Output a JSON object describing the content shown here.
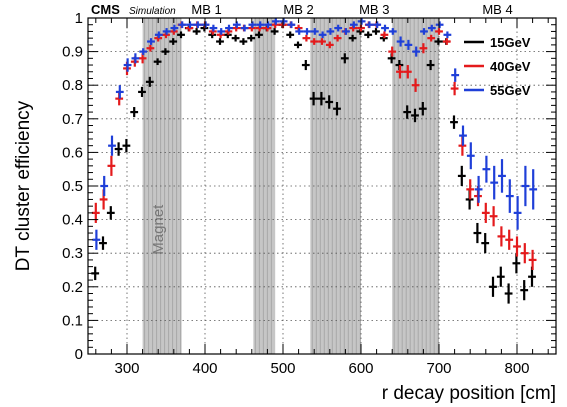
{
  "chart_data": {
    "type": "scatter",
    "xlabel": "r decay position [cm]",
    "ylabel": "DT cluster efficiency",
    "xlim": [
      250,
      850
    ],
    "ylim": [
      0,
      1.0
    ],
    "x_ticks": [
      300,
      400,
      500,
      600,
      700,
      800
    ],
    "y_ticks": [
      0,
      0.1,
      0.2,
      0.3,
      0.4,
      0.5,
      0.6,
      0.7,
      0.8,
      0.9,
      1
    ],
    "grid": true,
    "legend_position": "top-right",
    "experiment_label": "CMS",
    "experiment_sublabel": "Simulation",
    "shaded_regions": [
      {
        "name": "Magnet",
        "x0": 320,
        "x1": 370
      },
      {
        "name": "MB 1",
        "x0": 462,
        "x1": 490
      },
      {
        "name": "MB 2",
        "x0": 535,
        "x1": 600
      },
      {
        "name": "MB 3",
        "x0": 640,
        "x1": 700
      }
    ],
    "region_labels": [
      {
        "text": "MB 1",
        "x": 402
      },
      {
        "text": "MB 2",
        "x": 520
      },
      {
        "text": "MB 3",
        "x": 617
      },
      {
        "text": "MB 4",
        "x": 775
      }
    ],
    "series": [
      {
        "name": "15GeV",
        "color": "#000000",
        "points": [
          [
            260,
            0.24,
            0.02
          ],
          [
            270,
            0.33,
            0.02
          ],
          [
            280,
            0.42,
            0.02
          ],
          [
            290,
            0.61,
            0.02
          ],
          [
            300,
            0.62,
            0.02
          ],
          [
            310,
            0.72,
            0.015
          ],
          [
            320,
            0.78,
            0.015
          ],
          [
            330,
            0.81,
            0.015
          ],
          [
            340,
            0.87,
            0.01
          ],
          [
            350,
            0.9,
            0.01
          ],
          [
            360,
            0.93,
            0.01
          ],
          [
            370,
            0.95,
            0.01
          ],
          [
            380,
            0.97,
            0.01
          ],
          [
            390,
            0.96,
            0.01
          ],
          [
            400,
            0.97,
            0.01
          ],
          [
            410,
            0.95,
            0.01
          ],
          [
            420,
            0.93,
            0.01
          ],
          [
            430,
            0.95,
            0.01
          ],
          [
            440,
            0.94,
            0.01
          ],
          [
            450,
            0.93,
            0.01
          ],
          [
            460,
            0.94,
            0.01
          ],
          [
            470,
            0.95,
            0.01
          ],
          [
            480,
            0.97,
            0.01
          ],
          [
            490,
            0.96,
            0.01
          ],
          [
            500,
            0.98,
            0.01
          ],
          [
            510,
            0.95,
            0.01
          ],
          [
            520,
            0.92,
            0.01
          ],
          [
            530,
            0.86,
            0.015
          ],
          [
            540,
            0.76,
            0.02
          ],
          [
            550,
            0.76,
            0.02
          ],
          [
            560,
            0.75,
            0.02
          ],
          [
            570,
            0.73,
            0.02
          ],
          [
            580,
            0.88,
            0.015
          ],
          [
            590,
            0.94,
            0.01
          ],
          [
            600,
            0.96,
            0.01
          ],
          [
            610,
            0.95,
            0.01
          ],
          [
            620,
            0.96,
            0.01
          ],
          [
            630,
            0.94,
            0.01
          ],
          [
            640,
            0.88,
            0.015
          ],
          [
            650,
            0.86,
            0.015
          ],
          [
            660,
            0.72,
            0.02
          ],
          [
            670,
            0.71,
            0.02
          ],
          [
            680,
            0.73,
            0.02
          ],
          [
            690,
            0.86,
            0.015
          ],
          [
            700,
            0.93,
            0.01
          ],
          [
            710,
            0.93,
            0.01
          ],
          [
            720,
            0.69,
            0.02
          ],
          [
            730,
            0.53,
            0.03
          ],
          [
            740,
            0.46,
            0.03
          ],
          [
            750,
            0.36,
            0.03
          ],
          [
            760,
            0.33,
            0.03
          ],
          [
            770,
            0.2,
            0.03
          ],
          [
            780,
            0.23,
            0.03
          ],
          [
            790,
            0.18,
            0.03
          ],
          [
            800,
            0.27,
            0.03
          ],
          [
            810,
            0.19,
            0.03
          ],
          [
            820,
            0.23,
            0.03
          ]
        ]
      },
      {
        "name": "40GeV",
        "color": "#e41a1c",
        "points": [
          [
            260,
            0.42,
            0.03
          ],
          [
            270,
            0.46,
            0.03
          ],
          [
            280,
            0.56,
            0.03
          ],
          [
            290,
            0.76,
            0.02
          ],
          [
            300,
            0.85,
            0.02
          ],
          [
            310,
            0.87,
            0.015
          ],
          [
            320,
            0.88,
            0.015
          ],
          [
            330,
            0.91,
            0.01
          ],
          [
            340,
            0.94,
            0.01
          ],
          [
            350,
            0.95,
            0.01
          ],
          [
            360,
            0.96,
            0.01
          ],
          [
            370,
            0.98,
            0.01
          ],
          [
            380,
            0.97,
            0.01
          ],
          [
            390,
            0.98,
            0.01
          ],
          [
            400,
            0.98,
            0.01
          ],
          [
            410,
            0.96,
            0.01
          ],
          [
            420,
            0.95,
            0.01
          ],
          [
            430,
            0.96,
            0.01
          ],
          [
            440,
            0.97,
            0.01
          ],
          [
            450,
            0.97,
            0.01
          ],
          [
            460,
            0.97,
            0.01
          ],
          [
            470,
            0.97,
            0.01
          ],
          [
            480,
            0.97,
            0.01
          ],
          [
            490,
            0.98,
            0.01
          ],
          [
            500,
            0.98,
            0.01
          ],
          [
            510,
            0.98,
            0.01
          ],
          [
            520,
            0.97,
            0.01
          ],
          [
            530,
            0.94,
            0.01
          ],
          [
            540,
            0.93,
            0.01
          ],
          [
            550,
            0.93,
            0.01
          ],
          [
            560,
            0.92,
            0.01
          ],
          [
            570,
            0.94,
            0.01
          ],
          [
            580,
            0.96,
            0.01
          ],
          [
            590,
            0.97,
            0.01
          ],
          [
            600,
            0.97,
            0.01
          ],
          [
            610,
            0.98,
            0.01
          ],
          [
            620,
            0.98,
            0.01
          ],
          [
            630,
            0.95,
            0.01
          ],
          [
            640,
            0.9,
            0.015
          ],
          [
            650,
            0.84,
            0.02
          ],
          [
            660,
            0.84,
            0.02
          ],
          [
            670,
            0.8,
            0.02
          ],
          [
            680,
            0.91,
            0.015
          ],
          [
            690,
            0.94,
            0.01
          ],
          [
            700,
            0.96,
            0.01
          ],
          [
            710,
            0.93,
            0.01
          ],
          [
            720,
            0.79,
            0.02
          ],
          [
            730,
            0.62,
            0.03
          ],
          [
            740,
            0.49,
            0.03
          ],
          [
            750,
            0.47,
            0.03
          ],
          [
            760,
            0.42,
            0.03
          ],
          [
            770,
            0.41,
            0.03
          ],
          [
            780,
            0.35,
            0.03
          ],
          [
            790,
            0.34,
            0.03
          ],
          [
            800,
            0.32,
            0.03
          ],
          [
            810,
            0.3,
            0.03
          ],
          [
            820,
            0.28,
            0.03
          ]
        ]
      },
      {
        "name": "55GeV",
        "color": "#1f3fd8",
        "points": [
          [
            260,
            0.34,
            0.03
          ],
          [
            270,
            0.5,
            0.03
          ],
          [
            280,
            0.62,
            0.03
          ],
          [
            290,
            0.78,
            0.02
          ],
          [
            300,
            0.86,
            0.02
          ],
          [
            310,
            0.88,
            0.015
          ],
          [
            320,
            0.9,
            0.01
          ],
          [
            330,
            0.93,
            0.01
          ],
          [
            340,
            0.95,
            0.01
          ],
          [
            350,
            0.96,
            0.01
          ],
          [
            360,
            0.97,
            0.01
          ],
          [
            370,
            0.98,
            0.01
          ],
          [
            380,
            0.98,
            0.01
          ],
          [
            390,
            0.98,
            0.01
          ],
          [
            400,
            0.98,
            0.01
          ],
          [
            410,
            0.97,
            0.01
          ],
          [
            420,
            0.96,
            0.01
          ],
          [
            430,
            0.97,
            0.01
          ],
          [
            440,
            0.98,
            0.01
          ],
          [
            450,
            0.97,
            0.01
          ],
          [
            460,
            0.98,
            0.01
          ],
          [
            470,
            0.98,
            0.01
          ],
          [
            480,
            0.98,
            0.01
          ],
          [
            490,
            0.99,
            0.01
          ],
          [
            500,
            0.99,
            0.01
          ],
          [
            510,
            0.98,
            0.01
          ],
          [
            520,
            0.96,
            0.01
          ],
          [
            530,
            0.96,
            0.01
          ],
          [
            540,
            0.96,
            0.01
          ],
          [
            550,
            0.95,
            0.01
          ],
          [
            560,
            0.96,
            0.01
          ],
          [
            570,
            0.97,
            0.01
          ],
          [
            580,
            0.96,
            0.01
          ],
          [
            590,
            0.98,
            0.01
          ],
          [
            600,
            0.99,
            0.01
          ],
          [
            610,
            0.98,
            0.01
          ],
          [
            620,
            0.98,
            0.01
          ],
          [
            630,
            0.97,
            0.01
          ],
          [
            640,
            0.96,
            0.01
          ],
          [
            650,
            0.93,
            0.015
          ],
          [
            660,
            0.92,
            0.015
          ],
          [
            670,
            0.9,
            0.015
          ],
          [
            680,
            0.96,
            0.01
          ],
          [
            690,
            0.97,
            0.01
          ],
          [
            700,
            0.98,
            0.01
          ],
          [
            710,
            0.95,
            0.01
          ],
          [
            720,
            0.83,
            0.02
          ],
          [
            730,
            0.65,
            0.03
          ],
          [
            740,
            0.59,
            0.04
          ],
          [
            750,
            0.49,
            0.04
          ],
          [
            760,
            0.55,
            0.04
          ],
          [
            770,
            0.51,
            0.05
          ],
          [
            780,
            0.53,
            0.05
          ],
          [
            790,
            0.47,
            0.05
          ],
          [
            800,
            0.42,
            0.05
          ],
          [
            810,
            0.5,
            0.06
          ],
          [
            820,
            0.49,
            0.06
          ]
        ]
      }
    ]
  }
}
